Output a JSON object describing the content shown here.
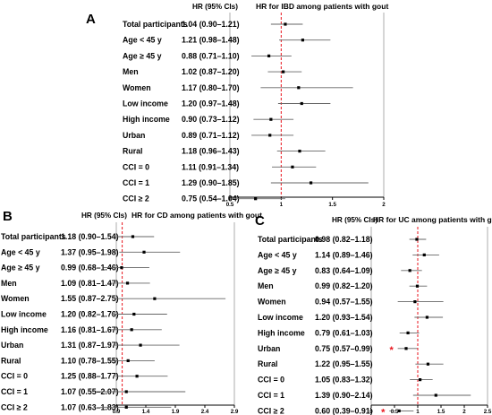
{
  "chart_data": [
    {
      "type": "forest",
      "panel_label": "A",
      "title": "HR for IBD among patients with gout",
      "column_header": "HR (95% CIs)",
      "xlim": [
        0.5,
        2
      ],
      "xticks": [
        "0.5",
        "1",
        "1.5",
        "2"
      ],
      "reference_line": 1,
      "rows": [
        {
          "label": "Total participants",
          "hr_text": "1.04 (0.90–1.21)",
          "hr": 1.04,
          "lo": 0.9,
          "hi": 1.21
        },
        {
          "label": "Age < 45 y",
          "hr_text": "1.21 (0.98–1.48)",
          "hr": 1.21,
          "lo": 0.98,
          "hi": 1.48
        },
        {
          "label": "Age ≥ 45 y",
          "hr_text": "0.88 (0.71–1.10)",
          "hr": 0.88,
          "lo": 0.71,
          "hi": 1.1
        },
        {
          "label": "Men",
          "hr_text": "1.02 (0.87–1.20)",
          "hr": 1.02,
          "lo": 0.87,
          "hi": 1.2
        },
        {
          "label": "Women",
          "hr_text": "1.17 (0.80–1.70)",
          "hr": 1.17,
          "lo": 0.8,
          "hi": 1.7
        },
        {
          "label": "Low income",
          "hr_text": "1.20 (0.97–1.48)",
          "hr": 1.2,
          "lo": 0.97,
          "hi": 1.48
        },
        {
          "label": "High income",
          "hr_text": "0.90 (0.73–1.12)",
          "hr": 0.9,
          "lo": 0.73,
          "hi": 1.12
        },
        {
          "label": "Urban",
          "hr_text": "0.89 (0.71–1.12)",
          "hr": 0.89,
          "lo": 0.71,
          "hi": 1.12
        },
        {
          "label": "Rural",
          "hr_text": "1.18 (0.96–1.43)",
          "hr": 1.18,
          "lo": 0.96,
          "hi": 1.43
        },
        {
          "label": "CCI = 0",
          "hr_text": "1.11 (0.91–1.34)",
          "hr": 1.11,
          "lo": 0.91,
          "hi": 1.34
        },
        {
          "label": "CCI = 1",
          "hr_text": "1.29 (0.90–1.85)",
          "hr": 1.29,
          "lo": 0.9,
          "hi": 1.85
        },
        {
          "label": "CCI ≥ 2",
          "hr_text": "0.75 (0.54–1.04)",
          "hr": 0.75,
          "lo": 0.54,
          "hi": 1.04
        }
      ]
    },
    {
      "type": "forest",
      "panel_label": "B",
      "title": "HR for CD among patients with gout",
      "column_header": "HR (95% CIs)",
      "xlim": [
        0.9,
        2.9
      ],
      "xticks": [
        "0.9",
        "1.4",
        "1.9",
        "2.4",
        "2.9"
      ],
      "reference_line": 1,
      "rows": [
        {
          "label": "Total participants",
          "hr_text": "1.18 (0.90–1.54)",
          "hr": 1.18,
          "lo": 0.9,
          "hi": 1.54
        },
        {
          "label": "Age < 45 y",
          "hr_text": "1.37 (0.95–1.98)",
          "hr": 1.37,
          "lo": 0.95,
          "hi": 1.98
        },
        {
          "label": "Age ≥ 45 y",
          "hr_text": "0.99 (0.68–1.46)",
          "hr": 0.99,
          "lo": 0.68,
          "hi": 1.46
        },
        {
          "label": "Men",
          "hr_text": "1.09 (0.81–1.47)",
          "hr": 1.09,
          "lo": 0.81,
          "hi": 1.47
        },
        {
          "label": "Women",
          "hr_text": "1.55 (0.87–2.75)",
          "hr": 1.55,
          "lo": 0.87,
          "hi": 2.75
        },
        {
          "label": "Low income",
          "hr_text": "1.20 (0.82–1.76)",
          "hr": 1.2,
          "lo": 0.82,
          "hi": 1.76
        },
        {
          "label": "High income",
          "hr_text": "1.16 (0.81–1.67)",
          "hr": 1.16,
          "lo": 0.81,
          "hi": 1.67
        },
        {
          "label": "Urban",
          "hr_text": "1.31 (0.87–1.97)",
          "hr": 1.31,
          "lo": 0.87,
          "hi": 1.97
        },
        {
          "label": "Rural",
          "hr_text": "1.10 (0.78–1.55)",
          "hr": 1.1,
          "lo": 0.78,
          "hi": 1.55
        },
        {
          "label": "CCI = 0",
          "hr_text": "1.25 (0.88–1.77)",
          "hr": 1.25,
          "lo": 0.88,
          "hi": 1.77
        },
        {
          "label": "CCI = 1",
          "hr_text": "1.07 (0.55–2.07)",
          "hr": 1.07,
          "lo": 0.55,
          "hi": 2.07
        },
        {
          "label": "CCI ≥ 2",
          "hr_text": "1.07 (0.63–1.83)",
          "hr": 1.07,
          "lo": 0.63,
          "hi": 1.83
        }
      ]
    },
    {
      "type": "forest",
      "panel_label": "C",
      "title": "HR for UC among patients with gout",
      "column_header": "HR (95% CIs)",
      "xlim": [
        0,
        2.5
      ],
      "xticks": [
        "0",
        "0.5",
        "1",
        "1.5",
        "2",
        "2.5"
      ],
      "reference_line": 1,
      "significance_marker": "*",
      "rows": [
        {
          "label": "Total participants",
          "hr_text": "0.98 (0.82–1.18)",
          "hr": 0.98,
          "lo": 0.82,
          "hi": 1.18
        },
        {
          "label": "Age < 45 y",
          "hr_text": "1.14 (0.89–1.46)",
          "hr": 1.14,
          "lo": 0.89,
          "hi": 1.46
        },
        {
          "label": "Age ≥ 45 y",
          "hr_text": "0.83 (0.64–1.09)",
          "hr": 0.83,
          "lo": 0.64,
          "hi": 1.09
        },
        {
          "label": "Men",
          "hr_text": "0.99 (0.82–1.20)",
          "hr": 0.99,
          "lo": 0.82,
          "hi": 1.2
        },
        {
          "label": "Women",
          "hr_text": "0.94 (0.57–1.55)",
          "hr": 0.94,
          "lo": 0.57,
          "hi": 1.55
        },
        {
          "label": "Low income",
          "hr_text": "1.20 (0.93–1.54)",
          "hr": 1.2,
          "lo": 0.93,
          "hi": 1.54
        },
        {
          "label": "High income",
          "hr_text": "0.79 (0.61–1.03)",
          "hr": 0.79,
          "lo": 0.61,
          "hi": 1.03
        },
        {
          "label": "Urban",
          "hr_text": "0.75 (0.57–0.99)",
          "hr": 0.75,
          "lo": 0.57,
          "hi": 0.99,
          "significant": true
        },
        {
          "label": "Rural",
          "hr_text": "1.22 (0.95–1.55)",
          "hr": 1.22,
          "lo": 0.95,
          "hi": 1.55
        },
        {
          "label": "CCI = 0",
          "hr_text": "1.05 (0.83–1.32)",
          "hr": 1.05,
          "lo": 0.83,
          "hi": 1.32
        },
        {
          "label": "CCI = 1",
          "hr_text": "1.39 (0.90–2.14)",
          "hr": 1.39,
          "lo": 0.9,
          "hi": 2.14
        },
        {
          "label": "CCI ≥ 2",
          "hr_text": "0.60 (0.39–0.91)",
          "hr": 0.6,
          "lo": 0.39,
          "hi": 0.91,
          "significant": true
        }
      ]
    }
  ],
  "colors": {
    "reference_line": "#e8141c",
    "significance": "#e8141c",
    "ci_line": "#666666",
    "point": "#000000",
    "axis": "#000000"
  }
}
